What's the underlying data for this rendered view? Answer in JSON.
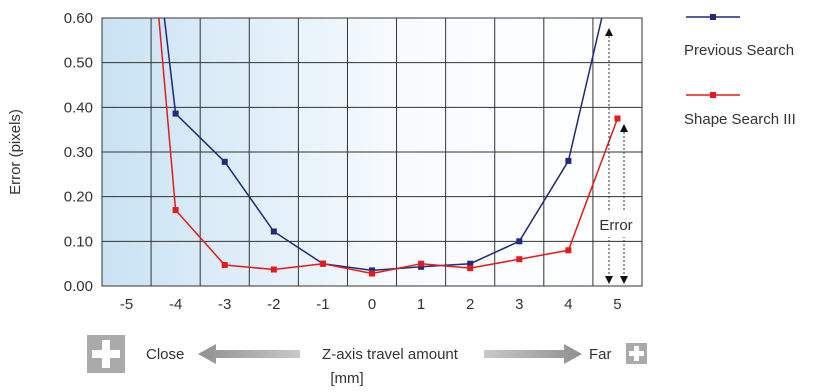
{
  "chart_data": {
    "type": "line",
    "title": "",
    "ylabel": "Error (pixels)",
    "xlabel": "Z-axis travel amount",
    "xunit": "[mm]",
    "xlim": [
      -5.5,
      5.5
    ],
    "ylim": [
      0,
      0.6
    ],
    "x_ticks": [
      "-5",
      "-4",
      "-3",
      "-2",
      "-1",
      "0",
      "1",
      "2",
      "3",
      "4",
      "5"
    ],
    "y_ticks": [
      "0.00",
      "0.10",
      "0.20",
      "0.30",
      "0.40",
      "0.50",
      "0.60"
    ],
    "grid": true,
    "legend_position": "right",
    "direction_labels": {
      "close": "Close",
      "far": "Far"
    },
    "annotation": "Error",
    "series": [
      {
        "name": "Previous Search",
        "color": "#1f2a7a",
        "x": [
          -4,
          -3,
          -2,
          -1,
          0,
          1,
          2,
          3,
          4
        ],
        "y": [
          0.386,
          0.278,
          0.122,
          0.05,
          0.035,
          0.043,
          0.05,
          0.1,
          0.28
        ]
      },
      {
        "name": "Shape Search III",
        "color": "#e41a1c",
        "x": [
          -4,
          -3,
          -2,
          -1,
          0,
          1,
          2,
          3,
          4,
          5
        ],
        "y": [
          0.17,
          0.047,
          0.037,
          0.05,
          0.028,
          0.05,
          0.04,
          0.06,
          0.08,
          0.375
        ]
      }
    ]
  }
}
